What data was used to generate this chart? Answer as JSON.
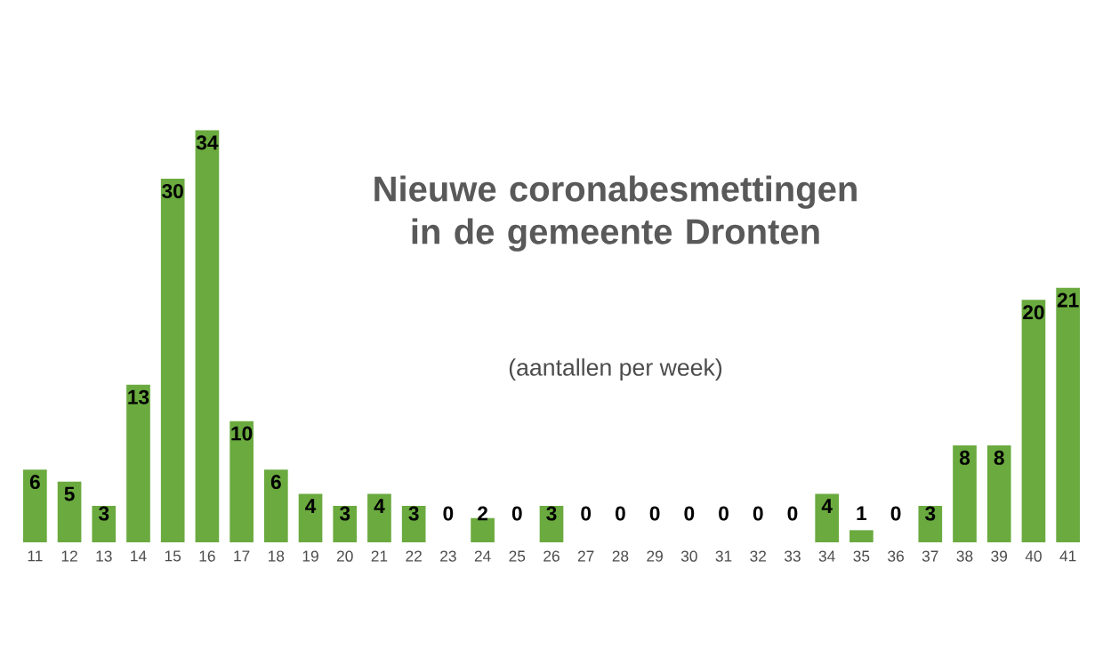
{
  "chart_data": {
    "type": "bar",
    "title": "Nieuwe coronabesmettingen in de gemeente Dronten",
    "subtitle": "(aantallen per week)",
    "categories": [
      "11",
      "12",
      "13",
      "14",
      "15",
      "16",
      "17",
      "18",
      "19",
      "20",
      "21",
      "22",
      "23",
      "24",
      "25",
      "26",
      "27",
      "28",
      "29",
      "30",
      "31",
      "32",
      "33",
      "34",
      "35",
      "36",
      "37",
      "38",
      "39",
      "40",
      "41"
    ],
    "values": [
      6,
      5,
      3,
      13,
      30,
      34,
      10,
      6,
      4,
      3,
      4,
      3,
      0,
      2,
      0,
      3,
      0,
      0,
      0,
      0,
      0,
      0,
      0,
      4,
      1,
      0,
      3,
      8,
      8,
      20,
      21
    ],
    "color": "#6aaa3f",
    "data_labels": true
  }
}
